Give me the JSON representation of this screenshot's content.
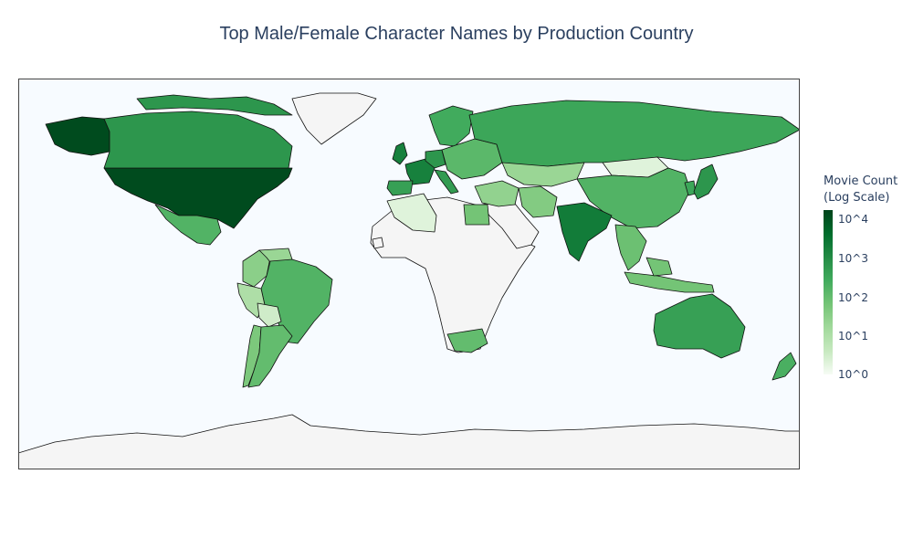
{
  "title": "Top Male/Female Character Names by Production Country",
  "colors": {
    "ocean": "#f7fbff",
    "no_data": "#f5f5f5",
    "border": "#111111",
    "scale": [
      "#f7fcf5",
      "#c7e9c0",
      "#a1d99b",
      "#74c476",
      "#41ab5d",
      "#238b45",
      "#006d2c",
      "#00441b"
    ]
  },
  "colorbar": {
    "title_line1": "Movie Count",
    "title_line2": "(Log Scale)",
    "ticks": [
      "10^4",
      "10^3",
      "10^2",
      "10^1",
      "10^0"
    ],
    "range_log": [
      0,
      4.2
    ]
  },
  "chart_data": {
    "type": "choropleth",
    "projection": "equirectangular",
    "value_scale": "log10",
    "value_name": "Movie Count",
    "regions": [
      {
        "name": "United States",
        "log_value": 4.1
      },
      {
        "name": "Canada",
        "log_value": 2.8
      },
      {
        "name": "Mexico",
        "log_value": 2.2
      },
      {
        "name": "Brazil",
        "log_value": 2.2
      },
      {
        "name": "Argentina",
        "log_value": 2.0
      },
      {
        "name": "Colombia",
        "log_value": 1.5
      },
      {
        "name": "Peru",
        "log_value": 1.0
      },
      {
        "name": "Chile",
        "log_value": 1.7
      },
      {
        "name": "Venezuela",
        "log_value": 1.3
      },
      {
        "name": "Bolivia",
        "log_value": 0.5
      },
      {
        "name": "United Kingdom",
        "log_value": 3.2
      },
      {
        "name": "France",
        "log_value": 3.2
      },
      {
        "name": "Germany",
        "log_value": 2.8
      },
      {
        "name": "Spain",
        "log_value": 2.6
      },
      {
        "name": "Italy",
        "log_value": 2.7
      },
      {
        "name": "Scandinavia",
        "log_value": 2.4
      },
      {
        "name": "Eastern Europe",
        "log_value": 2.1
      },
      {
        "name": "Russia",
        "log_value": 2.5
      },
      {
        "name": "Egypt",
        "log_value": 1.8
      },
      {
        "name": "Algeria",
        "log_value": 0.3
      },
      {
        "name": "South Africa",
        "log_value": 2.0
      },
      {
        "name": "Middle East",
        "log_value": 1.4
      },
      {
        "name": "Iran",
        "log_value": 1.6
      },
      {
        "name": "Kazakhstan",
        "log_value": 1.3
      },
      {
        "name": "Mongolia",
        "log_value": 0.3
      },
      {
        "name": "India",
        "log_value": 3.3
      },
      {
        "name": "China",
        "log_value": 2.2
      },
      {
        "name": "Japan",
        "log_value": 2.8
      },
      {
        "name": "South Korea",
        "log_value": 2.5
      },
      {
        "name": "Southeast Asia",
        "log_value": 1.9
      },
      {
        "name": "Indonesia",
        "log_value": 1.8
      },
      {
        "name": "Australia",
        "log_value": 2.6
      },
      {
        "name": "New Zealand",
        "log_value": 2.3
      }
    ]
  }
}
